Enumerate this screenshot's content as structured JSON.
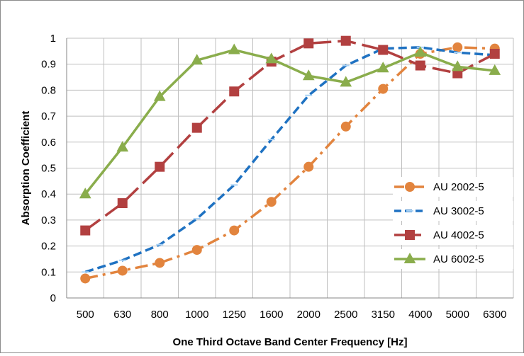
{
  "chart_data": {
    "type": "line",
    "title": "",
    "xlabel": "One Third Octave Band Center Frequency [Hz]",
    "ylabel": "Absorption Coefficient",
    "categories": [
      "500",
      "630",
      "800",
      "1000",
      "1250",
      "1600",
      "2000",
      "2500",
      "3150",
      "4000",
      "5000",
      "6300"
    ],
    "ylim": [
      0,
      1
    ],
    "yticks": [
      "0",
      "0.1",
      "0.2",
      "0.3",
      "0.4",
      "0.5",
      "0.6",
      "0.7",
      "0.8",
      "0.9",
      "1"
    ],
    "grid": true,
    "legend_position": "right",
    "series": [
      {
        "name": "AU 2002-5",
        "color": "#E2843E",
        "marker": "circle",
        "dash": "dash-dot",
        "values": [
          0.075,
          0.105,
          0.135,
          0.185,
          0.26,
          0.37,
          0.505,
          0.66,
          0.805,
          0.94,
          0.965,
          0.96
        ]
      },
      {
        "name": "AU 3002-5",
        "color": "#1F72C2",
        "marker": "dash",
        "dash": "dash",
        "values": [
          0.1,
          0.145,
          0.205,
          0.305,
          0.435,
          0.61,
          0.78,
          0.895,
          0.96,
          0.965,
          0.945,
          0.935
        ]
      },
      {
        "name": "AU 4002-5",
        "color": "#B24040",
        "marker": "square",
        "dash": "long-dash",
        "values": [
          0.26,
          0.365,
          0.505,
          0.655,
          0.795,
          0.91,
          0.98,
          0.99,
          0.955,
          0.895,
          0.865,
          0.94
        ]
      },
      {
        "name": "AU 6002-5",
        "color": "#8AAD4C",
        "marker": "triangle",
        "dash": "solid",
        "values": [
          0.4,
          0.58,
          0.775,
          0.915,
          0.955,
          0.92,
          0.855,
          0.83,
          0.885,
          0.945,
          0.89,
          0.875
        ]
      }
    ]
  }
}
